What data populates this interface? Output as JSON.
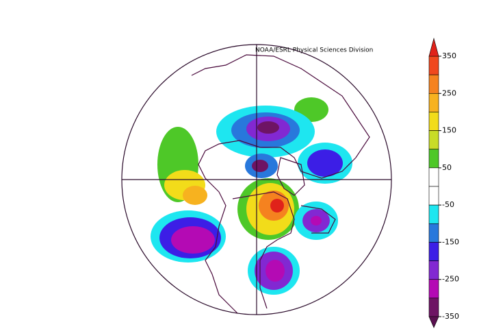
{
  "header": {
    "credit": "NOAA/ESRL Physical Sciences Division"
  },
  "colorbar": {
    "ticks": [
      350,
      250,
      150,
      50,
      -50,
      -150,
      -250,
      -350
    ],
    "range": [
      -350,
      350
    ],
    "step": 50,
    "over_color": "#e0221a",
    "under_color": "#5a1050",
    "band_colors": [
      "#f0481e",
      "#f5821f",
      "#f7b21f",
      "#f2dc1a",
      "#c8dc28",
      "#4ec828",
      "#ffffff",
      "#ffffff",
      "#1ee6f0",
      "#2878dc",
      "#3c1ee6",
      "#8228d2",
      "#b40ab4",
      "#6e1464"
    ]
  }
}
